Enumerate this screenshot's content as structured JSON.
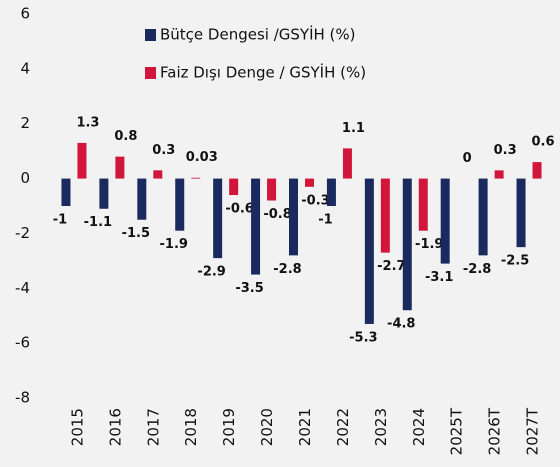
{
  "chart_data": {
    "type": "bar",
    "categories": [
      "2015",
      "2016",
      "2017",
      "2018",
      "2019",
      "2020",
      "2021",
      "2022",
      "2023",
      "2024",
      "2025T",
      "2026T",
      "2027T"
    ],
    "series": [
      {
        "name": "Bütçe Dengesi /GSYİH (%)",
        "color": "#1b2a5e",
        "values": [
          -1,
          -1.1,
          -1.5,
          -1.9,
          -2.9,
          -3.5,
          -2.8,
          -1,
          -5.3,
          -4.8,
          -3.1,
          -2.8,
          -2.5
        ]
      },
      {
        "name": "Faiz Dışı Denge / GSYİH (%)",
        "color": "#d2153b",
        "values": [
          1.3,
          0.8,
          0.3,
          0.03,
          -0.6,
          -0.8,
          -0.3,
          1.1,
          -2.7,
          -1.9,
          0,
          0.3,
          0.6
        ]
      }
    ],
    "ylim": [
      -8,
      6
    ],
    "yticks": [
      -8,
      -6,
      -4,
      -2,
      0,
      2,
      4,
      6
    ],
    "grid": false
  }
}
